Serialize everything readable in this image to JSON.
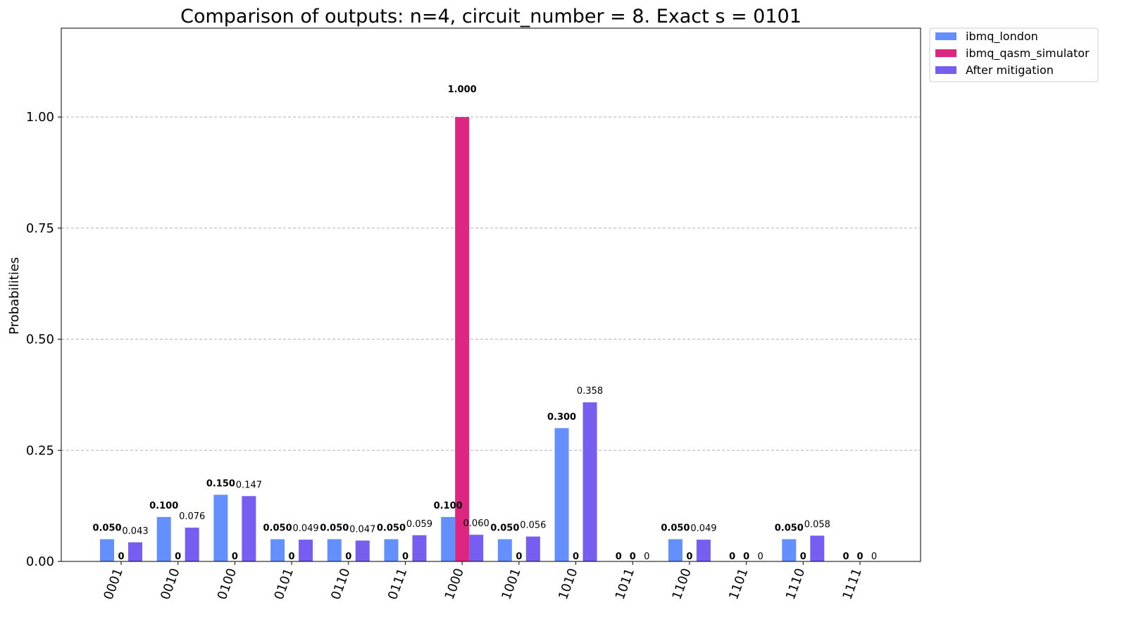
{
  "chart_data": {
    "type": "bar",
    "title": "Comparison of outputs: n=4, circuit_number = 8. Exact s = 0101",
    "xlabel": "",
    "ylabel": "Probabilities",
    "ylim": [
      0,
      1.2
    ],
    "yticks": [
      "0.00",
      "0.25",
      "0.50",
      "0.75",
      "1.00"
    ],
    "ytick_values": [
      0,
      0.25,
      0.5,
      0.75,
      1.0
    ],
    "grid": "y-dashed",
    "legend_position": "outside-top-right",
    "categories": [
      "0001",
      "0010",
      "0100",
      "0101",
      "0110",
      "0111",
      "1000",
      "1001",
      "1010",
      "1011",
      "1100",
      "1101",
      "1110",
      "1111"
    ],
    "series": [
      {
        "name": "ibmq_london",
        "color": "#648fff",
        "label_style": "bold",
        "values": [
          0.05,
          0.1,
          0.15,
          0.05,
          0.05,
          0.05,
          0.1,
          0.05,
          0.3,
          0,
          0.05,
          0,
          0.05,
          0
        ],
        "labels": [
          "0.050",
          "0.100",
          "0.150",
          "0.050",
          "0.050",
          "0.050",
          "0.100",
          "0.050",
          "0.300",
          "0",
          "0.050",
          "0",
          "0.050",
          "0"
        ]
      },
      {
        "name": "ibmq_qasm_simulator",
        "color": "#dc267f",
        "label_style": "bold",
        "values": [
          0,
          0,
          0,
          0,
          0,
          0,
          1.0,
          0,
          0,
          0,
          0,
          0,
          0,
          0
        ],
        "labels": [
          "0",
          "0",
          "0",
          "0",
          "0",
          "0",
          "1.000",
          "0",
          "0",
          "0",
          "0",
          "0",
          "0",
          "0"
        ]
      },
      {
        "name": "After mitigation",
        "color": "#785ef0",
        "label_style": "normal",
        "values": [
          0.043,
          0.076,
          0.147,
          0.049,
          0.047,
          0.059,
          0.06,
          0.056,
          0.358,
          0,
          0.049,
          0,
          0.058,
          0
        ],
        "labels": [
          "0.043",
          "0.076",
          "0.147",
          "0.049",
          "0.047",
          "0.059",
          "0.060",
          "0.056",
          "0.358",
          "0",
          "0.049",
          "0",
          "0.058",
          "0"
        ]
      }
    ]
  }
}
